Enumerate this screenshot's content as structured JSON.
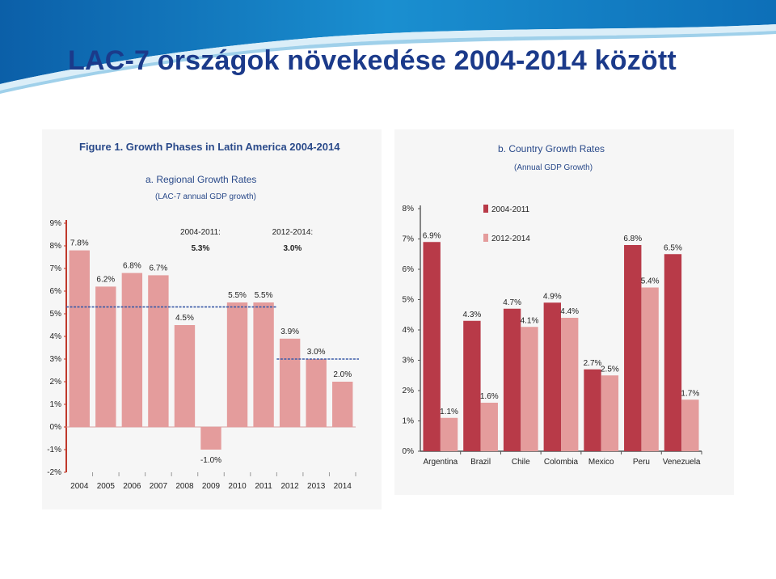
{
  "slide": {
    "title": "LAC-7 országok növekedése 2004-2014 között"
  },
  "colors": {
    "title": "#1b3a8a",
    "banner": "#1a7fc0",
    "bar_light": "#e49c9c",
    "bar_dark": "#b83a48",
    "axis": "#c0392b",
    "avg_line": "#3b5ba8"
  },
  "figure": {
    "title": "Figure 1. Growth Phases in Latin America 2004-2014"
  },
  "chart_data": [
    {
      "type": "bar",
      "title": "a. Regional Growth Rates",
      "subtitle": "(LAC-7 annual GDP growth)",
      "categories": [
        "2004",
        "2005",
        "2006",
        "2007",
        "2008",
        "2009",
        "2010",
        "2011",
        "2012",
        "2013",
        "2014"
      ],
      "values": [
        7.8,
        6.2,
        6.8,
        6.7,
        4.5,
        -1.0,
        5.5,
        5.5,
        3.9,
        3.0,
        2.0
      ],
      "value_labels": [
        "7.8%",
        "6.2%",
        "6.8%",
        "6.7%",
        "4.5%",
        "-1.0%",
        "5.5%",
        "5.5%",
        "3.9%",
        "3.0%",
        "2.0%"
      ],
      "ylim": [
        -2,
        9
      ],
      "yticks": [
        9,
        8,
        7,
        6,
        5,
        4,
        3,
        2,
        1,
        0,
        -1,
        -2
      ],
      "ytick_labels": [
        "9%",
        "8%",
        "7%",
        "6%",
        "5%",
        "4%",
        "3%",
        "2%",
        "1%",
        "0%",
        "-1%",
        "-2%"
      ],
      "averages": [
        {
          "label": "2004-2011:",
          "value_label": "5.3%",
          "value": 5.3,
          "from_index": 0,
          "to_index": 7
        },
        {
          "label": "2012-2014:",
          "value_label": "3.0%",
          "value": 3.0,
          "from_index": 8,
          "to_index": 10
        }
      ]
    },
    {
      "type": "bar",
      "title": "b. Country Growth Rates",
      "subtitle": "(Annual GDP Growth)",
      "categories": [
        "Argentina",
        "Brazil",
        "Chile",
        "Colombia",
        "Mexico",
        "Peru",
        "Venezuela"
      ],
      "series": [
        {
          "name": "2004-2011",
          "values": [
            6.9,
            4.3,
            4.7,
            4.9,
            2.7,
            6.8,
            6.5
          ],
          "labels": [
            "6.9%",
            "4.3%",
            "4.7%",
            "4.9%",
            "2.7%",
            "6.8%",
            "6.5%"
          ]
        },
        {
          "name": "2012-2014",
          "values": [
            1.1,
            1.6,
            4.1,
            4.4,
            2.5,
            5.4,
            1.7
          ],
          "labels": [
            "1.1%",
            "1.6%",
            "4.1%",
            "4.4%",
            "2.5%",
            "5.4%",
            "1.7%"
          ]
        }
      ],
      "ylim": [
        0,
        8
      ],
      "yticks": [
        8,
        7,
        6,
        5,
        4,
        3,
        2,
        1,
        0
      ],
      "ytick_labels": [
        "8%",
        "7%",
        "6%",
        "5%",
        "4%",
        "3%",
        "2%",
        "1%",
        "0%"
      ],
      "legend": "top-left"
    }
  ]
}
